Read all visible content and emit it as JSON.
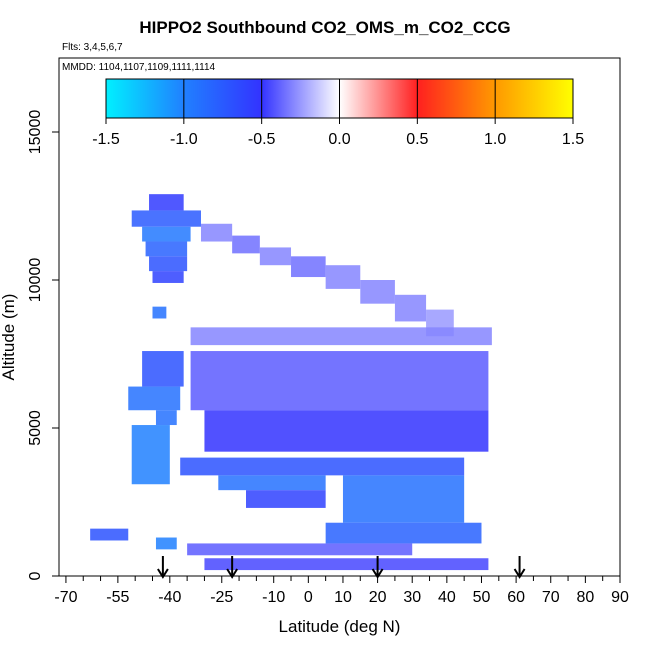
{
  "chart_data": {
    "type": "heatmap",
    "title": "HIPPO2 Southbound CO2_OMS_m_CO2_CCG",
    "flights_text": "Flts: 3,4,5,6,7",
    "dates_text": "MMDD: 1104,1107,1109,1111,1114",
    "xlabel": "Latitude (deg N)",
    "ylabel": "Altitude (m)",
    "xlim": [
      -72,
      90
    ],
    "ylim": [
      0,
      17500
    ],
    "x_ticks": [
      -70,
      -55,
      -40,
      -25,
      -10,
      0,
      10,
      20,
      30,
      40,
      50,
      60,
      70,
      80,
      90
    ],
    "x_tick_labels": [
      "-70",
      "-55",
      "-40",
      "-25",
      "-10",
      "0",
      "10",
      "20",
      "30",
      "40",
      "50",
      "60",
      "70",
      "80",
      "90"
    ],
    "x_minor_ticks": [
      -65,
      -60,
      -50,
      -45,
      -35,
      -30,
      -20,
      -15,
      -5,
      5,
      15,
      25,
      35,
      45,
      55,
      65,
      75,
      85
    ],
    "y_ticks": [
      0,
      5000,
      10000,
      15000
    ],
    "y_tick_labels": [
      "0",
      "5000",
      "10000",
      "15000"
    ],
    "colorbar": {
      "range": [
        -1.5,
        1.5
      ],
      "ticks": [
        -1.5,
        -1.0,
        -0.5,
        0.0,
        0.5,
        1.0,
        1.5
      ],
      "tick_labels": [
        "-1.5",
        "-1.0",
        "-0.5",
        "0.0",
        "0.5",
        "1.0",
        "1.5"
      ],
      "colors": {
        "-1.5": "#00f0ff",
        "-1.0": "#2080ff",
        "-0.5": "#3333ff",
        "0.0": "#ffffff",
        "0.5": "#ff2020",
        "1.0": "#ff9900",
        "1.5": "#ffff00"
      }
    },
    "profile_markers_lat": [
      -42,
      -22,
      20,
      61
    ],
    "cells": [
      {
        "lat": [
          -46,
          -36
        ],
        "alt": [
          12350,
          12900
        ],
        "value": -0.55
      },
      {
        "lat": [
          -51,
          -31
        ],
        "alt": [
          11800,
          12350
        ],
        "value": -0.75
      },
      {
        "lat": [
          -48,
          -34
        ],
        "alt": [
          11300,
          11800
        ],
        "value": -0.95
      },
      {
        "lat": [
          -47,
          -35
        ],
        "alt": [
          10800,
          11300
        ],
        "value": -0.8
      },
      {
        "lat": [
          -46,
          -35
        ],
        "alt": [
          10300,
          10800
        ],
        "value": -0.7
      },
      {
        "lat": [
          -45,
          -36
        ],
        "alt": [
          9900,
          10300
        ],
        "value": -0.6
      },
      {
        "lat": [
          -31,
          -22
        ],
        "alt": [
          11300,
          11900
        ],
        "value": -0.3
      },
      {
        "lat": [
          -22,
          -14
        ],
        "alt": [
          10900,
          11500
        ],
        "value": -0.35
      },
      {
        "lat": [
          -14,
          -5
        ],
        "alt": [
          10500,
          11100
        ],
        "value": -0.3
      },
      {
        "lat": [
          -5,
          5
        ],
        "alt": [
          10100,
          10800
        ],
        "value": -0.35
      },
      {
        "lat": [
          5,
          15
        ],
        "alt": [
          9700,
          10500
        ],
        "value": -0.3
      },
      {
        "lat": [
          15,
          25
        ],
        "alt": [
          9200,
          10000
        ],
        "value": -0.3
      },
      {
        "lat": [
          25,
          34
        ],
        "alt": [
          8600,
          9500
        ],
        "value": -0.3
      },
      {
        "lat": [
          34,
          42
        ],
        "alt": [
          8100,
          9000
        ],
        "value": -0.25
      },
      {
        "lat": [
          -34,
          53
        ],
        "alt": [
          7800,
          8400
        ],
        "value": -0.3
      },
      {
        "lat": [
          -45,
          -41
        ],
        "alt": [
          8700,
          9100
        ],
        "value": -0.9
      },
      {
        "lat": [
          -48,
          -36
        ],
        "alt": [
          6400,
          7600
        ],
        "value": -0.7
      },
      {
        "lat": [
          -52,
          -37
        ],
        "alt": [
          5600,
          6400
        ],
        "value": -0.9
      },
      {
        "lat": [
          -44,
          -38
        ],
        "alt": [
          5100,
          5600
        ],
        "value": -0.9
      },
      {
        "lat": [
          -34,
          52
        ],
        "alt": [
          5600,
          7600
        ],
        "value": -0.4
      },
      {
        "lat": [
          -30,
          52
        ],
        "alt": [
          4200,
          5600
        ],
        "value": -0.5
      },
      {
        "lat": [
          -51,
          -40
        ],
        "alt": [
          3100,
          5100
        ],
        "value": -1.0
      },
      {
        "lat": [
          -37,
          45
        ],
        "alt": [
          3400,
          4000
        ],
        "value": -0.7
      },
      {
        "lat": [
          -26,
          5
        ],
        "alt": [
          2900,
          3400
        ],
        "value": -0.9
      },
      {
        "lat": [
          -18,
          5
        ],
        "alt": [
          2300,
          2900
        ],
        "value": -0.6
      },
      {
        "lat": [
          10,
          45
        ],
        "alt": [
          1800,
          3400
        ],
        "value": -0.9
      },
      {
        "lat": [
          5,
          50
        ],
        "alt": [
          1100,
          1800
        ],
        "value": -0.8
      },
      {
        "lat": [
          -44,
          -38
        ],
        "alt": [
          900,
          1300
        ],
        "value": -1.0
      },
      {
        "lat": [
          -63,
          -52
        ],
        "alt": [
          1200,
          1600
        ],
        "value": -0.7
      },
      {
        "lat": [
          -35,
          30
        ],
        "alt": [
          700,
          1100
        ],
        "value": -0.4
      },
      {
        "lat": [
          -30,
          52
        ],
        "alt": [
          200,
          600
        ],
        "value": -0.45
      }
    ]
  }
}
